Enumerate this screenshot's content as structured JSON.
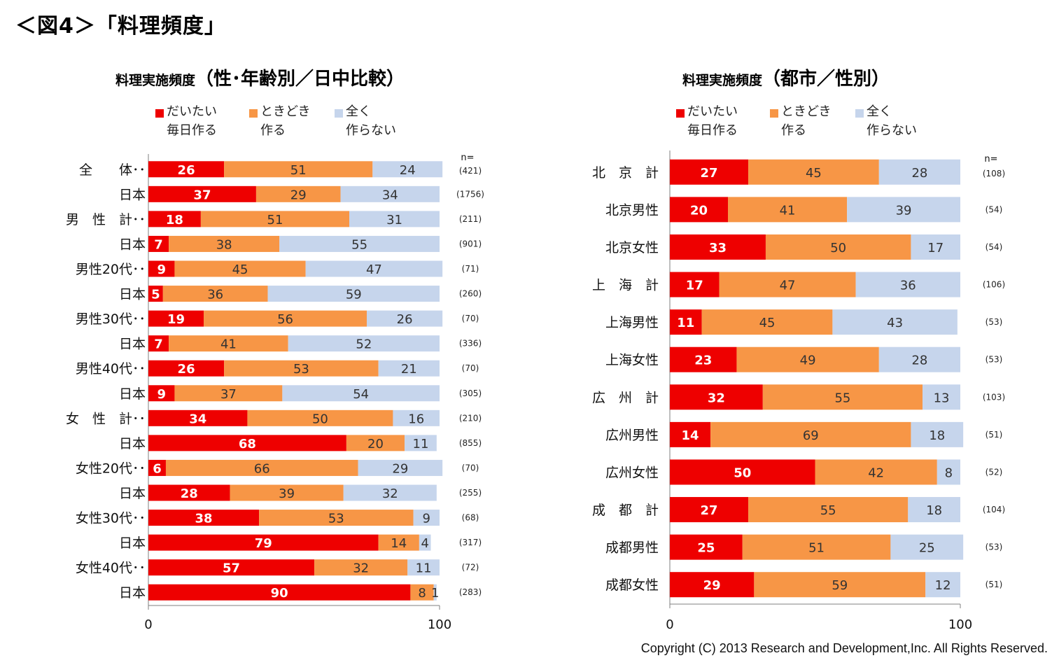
{
  "figure_title": "＜図4＞「料理頻度」",
  "copyright": "Copyright (C) 2013 Research and Development,Inc. All Rights Reserved.",
  "colors": {
    "daily": "#ee0000",
    "sometimes": "#f79646",
    "never": "#c6d5ec"
  },
  "chart_data": [
    {
      "type": "bar",
      "orientation": "horizontal",
      "stacked": true,
      "title_parts": [
        "料理実施頻度",
        "（性･年齢別／日中比較）"
      ],
      "legend": [
        {
          "key": "daily",
          "label": "だいたい\n毎日作る"
        },
        {
          "key": "sometimes",
          "label": "ときどき\n作る"
        },
        {
          "key": "never",
          "label": "全く\n作らない"
        }
      ],
      "n_header": "n=",
      "xlim": [
        0,
        100
      ],
      "xticks": [
        "0",
        "100"
      ],
      "categories": [
        "全　　体･･",
        "日本",
        "男　性　計･･",
        "日本",
        "男性20代･･",
        "日本",
        "男性30代･･",
        "日本",
        "男性40代･･",
        "日本",
        "女　性　計･･",
        "日本",
        "女性20代･･",
        "日本",
        "女性30代･･",
        "日本",
        "女性40代･･",
        "日本"
      ],
      "n": [
        "(421)",
        "(1756)",
        "(211)",
        "(901)",
        "(71)",
        "(260)",
        "(70)",
        "(336)",
        "(70)",
        "(305)",
        "(210)",
        "(855)",
        "(70)",
        "(255)",
        "(68)",
        "(317)",
        "(72)",
        "(283)"
      ],
      "series": [
        {
          "key": "daily",
          "values": [
            26,
            37,
            18,
            7,
            9,
            5,
            19,
            7,
            26,
            9,
            34,
            68,
            6,
            28,
            38,
            79,
            57,
            90
          ]
        },
        {
          "key": "sometimes",
          "values": [
            51,
            29,
            51,
            38,
            45,
            36,
            56,
            41,
            53,
            37,
            50,
            20,
            66,
            39,
            53,
            14,
            32,
            8
          ]
        },
        {
          "key": "never",
          "values": [
            24,
            34,
            31,
            55,
            47,
            59,
            26,
            52,
            21,
            54,
            16,
            11,
            29,
            32,
            9,
            4,
            11,
            1
          ]
        }
      ]
    },
    {
      "type": "bar",
      "orientation": "horizontal",
      "stacked": true,
      "title_parts": [
        "料理実施頻度",
        "（都市／性別）"
      ],
      "legend": [
        {
          "key": "daily",
          "label": "だいたい\n毎日作る"
        },
        {
          "key": "sometimes",
          "label": "ときどき\n作る"
        },
        {
          "key": "never",
          "label": "全く\n作らない"
        }
      ],
      "n_header": "n=",
      "xlim": [
        0,
        100
      ],
      "xticks": [
        "0",
        "100"
      ],
      "categories": [
        "北　京　計",
        "北京男性",
        "北京女性",
        "上　海　計",
        "上海男性",
        "上海女性",
        "広　州　計",
        "広州男性",
        "広州女性",
        "成　都　計",
        "成都男性",
        "成都女性"
      ],
      "n": [
        "(108)",
        "(54)",
        "(54)",
        "(106)",
        "(53)",
        "(53)",
        "(103)",
        "(51)",
        "(52)",
        "(104)",
        "(53)",
        "(51)"
      ],
      "series": [
        {
          "key": "daily",
          "values": [
            27,
            20,
            33,
            17,
            11,
            23,
            32,
            14,
            50,
            27,
            25,
            29
          ]
        },
        {
          "key": "sometimes",
          "values": [
            45,
            41,
            50,
            47,
            45,
            49,
            55,
            69,
            42,
            55,
            51,
            59
          ]
        },
        {
          "key": "never",
          "values": [
            28,
            39,
            17,
            36,
            43,
            28,
            13,
            18,
            8,
            18,
            25,
            12
          ]
        }
      ]
    }
  ]
}
